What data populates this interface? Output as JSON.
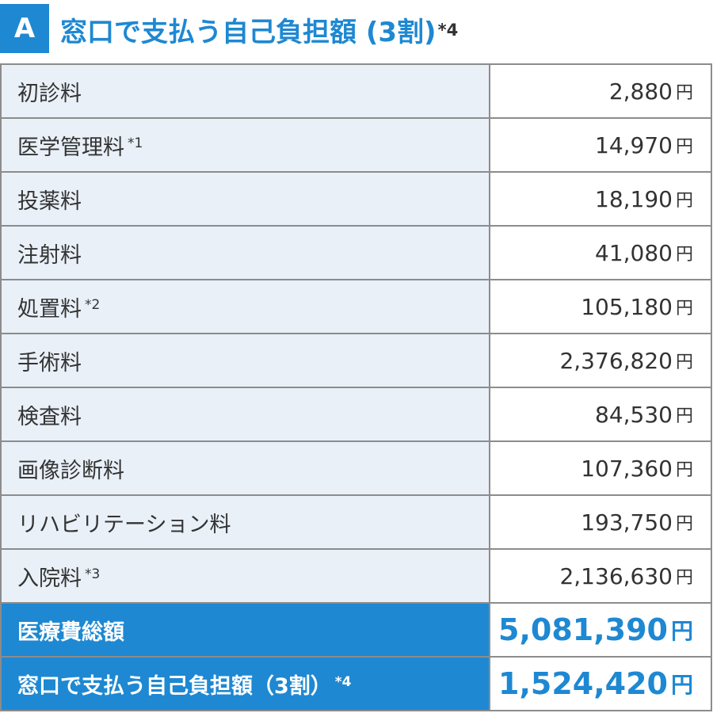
{
  "header": {
    "badge": "A",
    "title": "窓口で支払う自己負担額 (3割)",
    "title_note": "*4"
  },
  "unit": "円",
  "rows": [
    {
      "label": "初診料",
      "note": "",
      "value": "2,880"
    },
    {
      "label": "医学管理料",
      "note": "*1",
      "value": "14,970"
    },
    {
      "label": "投薬料",
      "note": "",
      "value": "18,190"
    },
    {
      "label": "注射料",
      "note": "",
      "value": "41,080"
    },
    {
      "label": "処置料",
      "note": "*2",
      "value": "105,180"
    },
    {
      "label": "手術料",
      "note": "",
      "value": "2,376,820"
    },
    {
      "label": "検査料",
      "note": "",
      "value": "84,530"
    },
    {
      "label": "画像診断料",
      "note": "",
      "value": "107,360"
    },
    {
      "label": "リハビリテーション料",
      "note": "",
      "value": "193,750"
    },
    {
      "label": "入院料",
      "note": "*3",
      "value": "2,136,630"
    }
  ],
  "totals": [
    {
      "label": "医療費総額",
      "note": "",
      "value": "5,081,390"
    },
    {
      "label": "窓口で支払う自己負担額（3割）",
      "note": "*4",
      "value": "1,524,420"
    }
  ],
  "colors": {
    "accent": "#1e88d2",
    "label_bg": "#e9f0f8",
    "border": "#8c8c8c"
  }
}
